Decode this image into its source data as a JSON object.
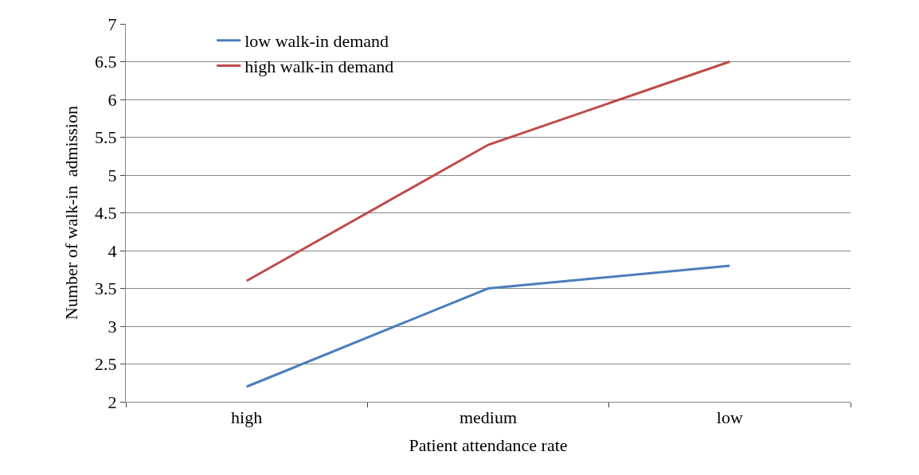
{
  "chart_data": {
    "type": "line",
    "xlabel": "Patient attendance rate",
    "ylabel": "Number of walk-in  admission",
    "categories": [
      "high",
      "medium",
      "low"
    ],
    "series": [
      {
        "name": "low walk-in demand",
        "color": "#4a7ebb",
        "values": [
          2.2,
          3.5,
          3.8
        ]
      },
      {
        "name": "high walk-in demand",
        "color": "#be4b48",
        "values": [
          3.6,
          5.4,
          6.5
        ]
      }
    ],
    "ylim": [
      2,
      7
    ],
    "yticks": [
      2,
      2.5,
      3,
      3.5,
      4,
      4.5,
      5,
      5.5,
      6,
      6.5,
      7
    ],
    "grid": "y",
    "legend": "top left",
    "marker": "none",
    "line_style": "solid"
  }
}
